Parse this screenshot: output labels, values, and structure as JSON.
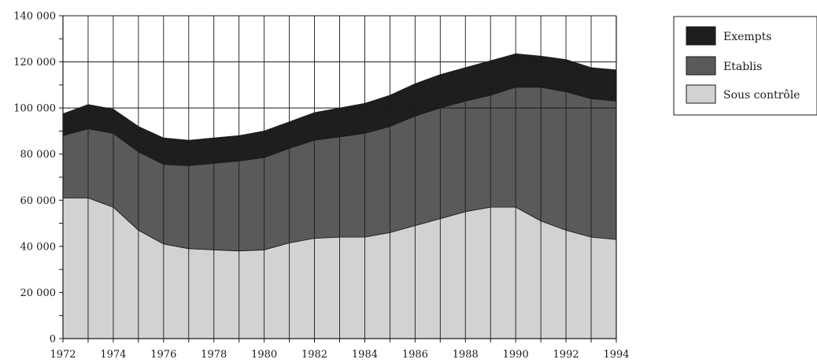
{
  "chart_data": {
    "type": "area",
    "stacked": true,
    "title": "",
    "xlabel": "",
    "ylabel": "",
    "x": [
      1972,
      1973,
      1974,
      1975,
      1976,
      1977,
      1978,
      1979,
      1980,
      1981,
      1982,
      1983,
      1984,
      1985,
      1986,
      1987,
      1988,
      1989,
      1990,
      1991,
      1992,
      1993,
      1994
    ],
    "x_tick_labels": [
      "1972",
      "1974",
      "1976",
      "1978",
      "1980",
      "1982",
      "1984",
      "1986",
      "1988",
      "1990",
      "1992",
      "1994"
    ],
    "y_tick_labels": [
      "0",
      "20 000",
      "40 000",
      "60 000",
      "80 000",
      "100 000",
      "120 000",
      "140 000"
    ],
    "ylim": [
      0,
      140000
    ],
    "grid": "horizontal at 100 000, 120 000 and 140 000; vertical line at each year",
    "legend_position": "top-right",
    "series": [
      {
        "name": "Sous contrôle",
        "color": "#d2d2d2",
        "values": [
          61000,
          61000,
          57000,
          47000,
          41000,
          39000,
          38500,
          38000,
          38500,
          41500,
          43500,
          44000,
          44000,
          46000,
          49000,
          52000,
          55000,
          57000,
          57000,
          51000,
          47000,
          44000,
          43000
        ]
      },
      {
        "name": "Etablis",
        "color": "#5a5a5a",
        "values": [
          27000,
          30000,
          32000,
          34000,
          34500,
          36000,
          37500,
          39000,
          40000,
          41000,
          42500,
          43500,
          45000,
          46000,
          47500,
          48000,
          48000,
          48500,
          52000,
          58000,
          60000,
          60000,
          60000
        ]
      },
      {
        "name": "Exempts",
        "color": "#1e1e1e",
        "values": [
          9500,
          10500,
          10500,
          11000,
          11500,
          11000,
          11000,
          11000,
          11500,
          11500,
          12000,
          12500,
          13000,
          13500,
          14000,
          14500,
          14500,
          15000,
          14500,
          13500,
          14000,
          13500,
          13500
        ]
      }
    ]
  }
}
